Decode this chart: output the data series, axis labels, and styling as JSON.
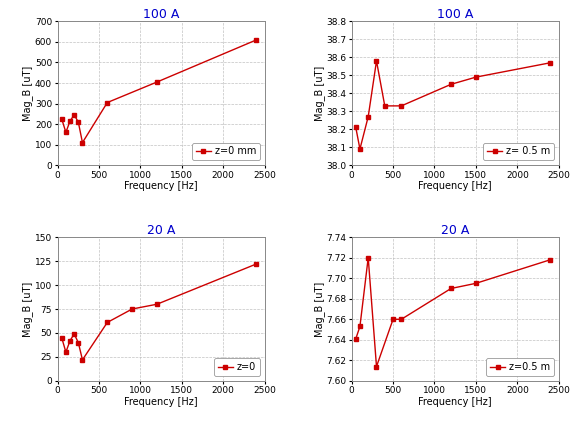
{
  "top_left": {
    "title": "100 A",
    "xlabel": "Frequency [Hz]",
    "ylabel": "Mag_B [uT]",
    "legend": "z=0 mm",
    "x": [
      50,
      100,
      150,
      200,
      250,
      300,
      600,
      1200,
      2400
    ],
    "y": [
      225,
      160,
      215,
      245,
      210,
      110,
      305,
      405,
      610
    ],
    "ylim": [
      0,
      700
    ],
    "yticks": [
      0,
      100,
      200,
      300,
      400,
      500,
      600,
      700
    ],
    "xlim": [
      0,
      2500
    ],
    "xticks": [
      0,
      500,
      1000,
      1500,
      2000,
      2500
    ]
  },
  "top_right": {
    "title": "100 A",
    "xlabel": "Frequency [Hz]",
    "ylabel": "Mag_B [uT]",
    "legend": "z= 0.5 m",
    "x": [
      50,
      100,
      200,
      300,
      400,
      600,
      1200,
      1500,
      2400
    ],
    "y": [
      38.21,
      38.09,
      38.27,
      38.58,
      38.33,
      38.33,
      38.45,
      38.49,
      38.57
    ],
    "ylim": [
      38.0,
      38.8
    ],
    "yticks": [
      38.0,
      38.1,
      38.2,
      38.3,
      38.4,
      38.5,
      38.6,
      38.7,
      38.8
    ],
    "xlim": [
      0,
      2500
    ],
    "xticks": [
      0,
      500,
      1000,
      1500,
      2000,
      2500
    ]
  },
  "bottom_left": {
    "title": "20 A",
    "xlabel": "Frequency [Hz]",
    "ylabel": "Mag_B [uT]",
    "legend": "z=0",
    "x": [
      50,
      100,
      150,
      200,
      250,
      300,
      600,
      900,
      1200,
      2400
    ],
    "y": [
      45,
      30,
      42,
      49,
      40,
      22,
      61,
      75,
      80,
      122
    ],
    "ylim": [
      0,
      150
    ],
    "yticks": [
      0,
      25,
      50,
      75,
      100,
      125,
      150
    ],
    "xlim": [
      0,
      2500
    ],
    "xticks": [
      0,
      500,
      1000,
      1500,
      2000,
      2500
    ]
  },
  "bottom_right": {
    "title": "20 A",
    "xlabel": "Frequency [Hz]",
    "ylabel": "Mag_B [uT]",
    "legend": "z=0.5 m",
    "x": [
      50,
      100,
      200,
      300,
      500,
      600,
      1200,
      1500,
      2400
    ],
    "y": [
      7.641,
      7.653,
      7.72,
      7.614,
      7.66,
      7.66,
      7.69,
      7.695,
      7.718
    ],
    "ylim": [
      7.6,
      7.74
    ],
    "yticks": [
      7.6,
      7.62,
      7.64,
      7.66,
      7.68,
      7.7,
      7.72,
      7.74
    ],
    "xlim": [
      0,
      2500
    ],
    "xticks": [
      0,
      500,
      1000,
      1500,
      2000,
      2500
    ]
  },
  "line_color": "#cc0000",
  "title_color": "#0000cc",
  "grid_color": "#bbbbbb",
  "bg_color": "#ffffff",
  "fig_bg_color": "#ffffff",
  "marker": "s",
  "markersize": 3.5,
  "linewidth": 1.0,
  "title_fontsize": 9,
  "label_fontsize": 7,
  "tick_fontsize": 6.5,
  "legend_fontsize": 7
}
